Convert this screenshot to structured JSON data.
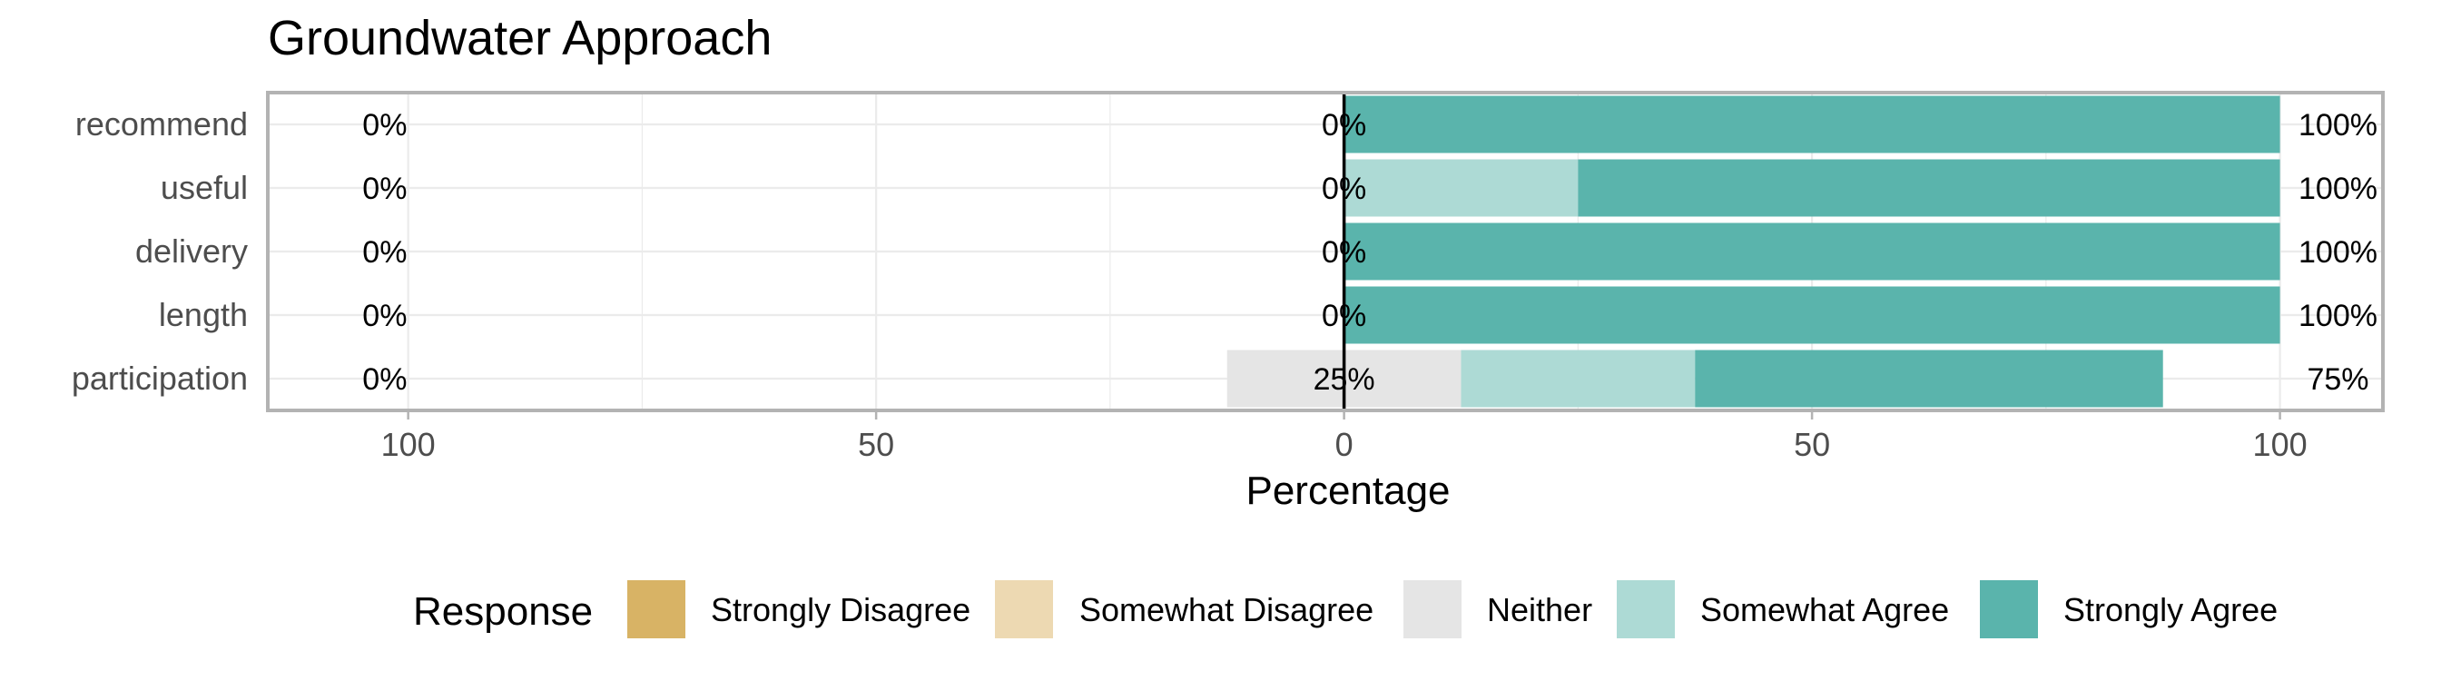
{
  "chart_data": {
    "type": "bar",
    "orientation": "horizontal-diverging",
    "title": "Groundwater Approach",
    "xlabel": "Percentage",
    "ylabel": "",
    "xlim": [
      -115,
      111
    ],
    "x_ticks": [
      {
        "value": -100,
        "label": "100"
      },
      {
        "value": -50,
        "label": "50"
      },
      {
        "value": 0,
        "label": "0"
      },
      {
        "value": 50,
        "label": "50"
      },
      {
        "value": 100,
        "label": "100"
      }
    ],
    "grid": true,
    "legend_title": "Response",
    "legend_position": "bottom",
    "categories": [
      "recommend",
      "useful",
      "delivery",
      "length",
      "participation"
    ],
    "series": [
      {
        "name": "Strongly Disagree",
        "color": "#D8B365",
        "values": [
          0,
          0,
          0,
          0,
          0
        ]
      },
      {
        "name": "Somewhat Disagree",
        "color": "#EDD9B2",
        "values": [
          0,
          0,
          0,
          0,
          0
        ]
      },
      {
        "name": "Neither",
        "color": "#E5E5E5",
        "values": [
          0,
          0,
          0,
          0,
          25
        ]
      },
      {
        "name": "Somewhat Agree",
        "color": "#ADDAD5",
        "values": [
          0,
          25,
          0,
          0,
          25
        ]
      },
      {
        "name": "Strongly Agree",
        "color": "#5AB4AC",
        "values": [
          100,
          75,
          100,
          100,
          50
        ]
      }
    ],
    "labels_left": [
      "0%",
      "0%",
      "0%",
      "0%",
      "0%"
    ],
    "labels_center": [
      "0%",
      "0%",
      "0%",
      "0%",
      "25%"
    ],
    "labels_right": [
      "100%",
      "100%",
      "100%",
      "100%",
      "75%"
    ]
  }
}
